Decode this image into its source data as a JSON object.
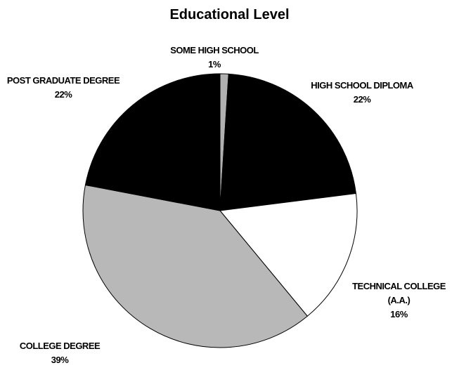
{
  "chart_data": {
    "type": "pie",
    "title": "Educational Level",
    "categories": [
      "SOME HIGH SCHOOL",
      "HIGH SCHOOL DIPLOMA",
      "TECHNICAL COLLEGE (A.A.)",
      "COLLEGE DEGREE",
      "POST GRADUATE DEGREE"
    ],
    "values": [
      1,
      22,
      16,
      39,
      22
    ],
    "value_labels": [
      "1%",
      "22%",
      "16%",
      "39%",
      "22%"
    ],
    "colors": [
      "#b0b0b0",
      "#000000",
      "#ffffff",
      "#b8b8b8",
      "#000000"
    ]
  }
}
